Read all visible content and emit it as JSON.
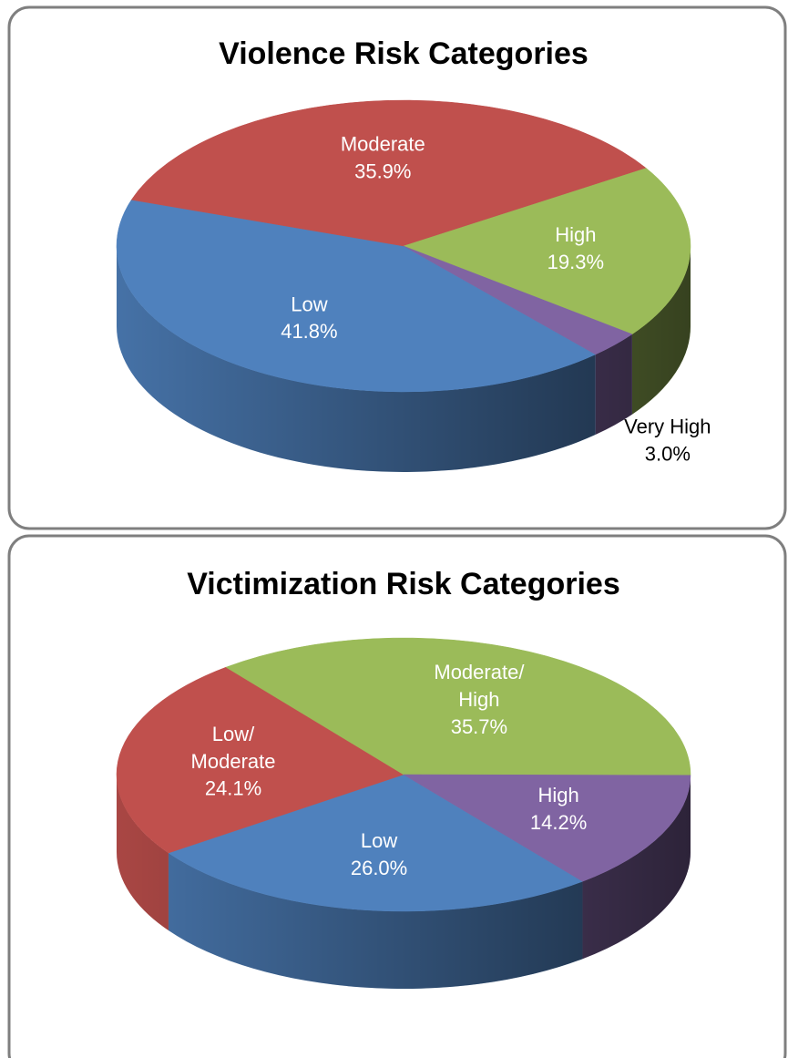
{
  "chart_data": [
    {
      "type": "pie3d",
      "title": "Violence Risk Categories",
      "categories": [
        "Low",
        "Moderate",
        "High",
        "Very High"
      ],
      "values": [
        41.8,
        35.9,
        19.3,
        3.0
      ],
      "value_labels": [
        "41.8%",
        "35.9%",
        "19.3%",
        "3.0%"
      ],
      "colors": [
        "#4f81bd",
        "#c0504d",
        "#9bbb59",
        "#8064a2"
      ]
    },
    {
      "type": "pie3d",
      "title": "Victimization Risk Categories",
      "categories": [
        "Low",
        "Low/Moderate",
        "Moderate/High",
        "High"
      ],
      "values": [
        26.0,
        24.1,
        35.7,
        14.2
      ],
      "value_labels": [
        "26.0%",
        "24.1%",
        "35.7%",
        "14.2%"
      ],
      "colors": [
        "#4f81bd",
        "#c0504d",
        "#9bbb59",
        "#8064a2"
      ]
    }
  ]
}
